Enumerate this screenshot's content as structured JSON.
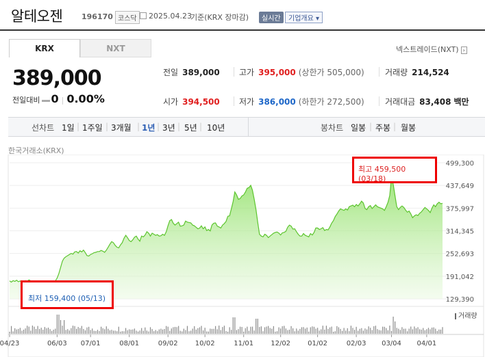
{
  "header": {
    "name": "알테오젠",
    "code": "196170",
    "market": "코스닥",
    "date": "2025.04.23",
    "basis": "기준(KRX 장마감)",
    "realtime_button": "실시간",
    "company_button": "기업개요 ▾"
  },
  "tabs": [
    {
      "label": "KRX",
      "active": true
    },
    {
      "label": "NXT",
      "active": false
    }
  ],
  "nxt_link": {
    "label": "넥스트레이드(NXT)",
    "arrow": "›"
  },
  "price": {
    "current": "389,000",
    "change_label": "전일대비",
    "change_value": "0",
    "change_rate": "0.00%"
  },
  "stats": {
    "prev_close": {
      "label": "전일",
      "value": "389,000"
    },
    "high": {
      "label": "고가",
      "value": "395,000",
      "sub": "(상한가 505,000)"
    },
    "volume": {
      "label": "거래량",
      "value": "214,524"
    },
    "open": {
      "label": "시가",
      "value": "394,500"
    },
    "low": {
      "label": "저가",
      "value": "386,000",
      "sub": "(하한가 272,500)"
    },
    "trade_amount": {
      "label": "거래대금",
      "value": "83,408",
      "unit": "백만"
    }
  },
  "periods": {
    "line_label": "선차트",
    "line_items": [
      "1일",
      "1주일",
      "3개월",
      "1년",
      "3년",
      "5년",
      "10년"
    ],
    "active": "1년",
    "candle_label": "봉차트",
    "candle_items": [
      "일봉",
      "주봉",
      "월봉"
    ]
  },
  "chart_source": "한국거래소(KRX)",
  "chart_data": {
    "type": "area",
    "title": "",
    "y_ticks": [
      499300,
      437649,
      375997,
      314345,
      252693,
      191042,
      129390
    ],
    "y_tick_labels": [
      "499,300",
      "437,649",
      "375,997",
      "314,345",
      "252,693",
      "191,042",
      "129,390"
    ],
    "ylim": [
      129390,
      499300
    ],
    "x_tick_labels": [
      "04/23",
      "06/03",
      "07/01",
      "08/01",
      "09/02",
      "10/02",
      "11/01",
      "12/02",
      "01/02",
      "02/03",
      "03/04",
      "04/01"
    ],
    "x_tick_index": [
      0,
      27,
      46,
      68,
      90,
      111,
      133,
      154,
      175,
      197,
      217,
      237
    ],
    "series": [
      {
        "values": [
          178000,
          175000,
          179000,
          177000,
          180000,
          176000,
          178000,
          172000,
          175000,
          179000,
          177000,
          181000,
          178000,
          176000,
          175000,
          172000,
          170000,
          165000,
          162000,
          159400,
          168000,
          172000,
          174000,
          171000,
          176000,
          175000,
          178000,
          186000,
          198000,
          215000,
          232000,
          240000,
          244000,
          247000,
          250000,
          253000,
          251000,
          257000,
          258000,
          254000,
          260000,
          257000,
          262000,
          255000,
          247000,
          246000,
          250000,
          252000,
          255000,
          256000,
          258000,
          258000,
          261000,
          259000,
          256000,
          262000,
          270000,
          278000,
          285000,
          282000,
          275000,
          270000,
          268000,
          276000,
          282000,
          294000,
          302000,
          296000,
          288000,
          285000,
          290000,
          297000,
          300000,
          292000,
          286000,
          300000,
          298000,
          303000,
          312000,
          308000,
          300000,
          308000,
          305000,
          302000,
          304000,
          300000,
          301000,
          305000,
          302000,
          312000,
          328000,
          342000,
          345000,
          335000,
          330000,
          334000,
          338000,
          327000,
          328000,
          330000,
          341000,
          338000,
          337000,
          336000,
          330000,
          328000,
          324000,
          320000,
          322000,
          328000,
          320000,
          325000,
          315000,
          318000,
          314000,
          330000,
          335000,
          336000,
          327000,
          325000,
          322000,
          330000,
          334000,
          340000,
          354000,
          355000,
          374000,
          394000,
          420000,
          412000,
          400000,
          402000,
          409000,
          412000,
          420000,
          430000,
          432000,
          438000,
          425000,
          400000,
          372000,
          338000,
          305000,
          300000,
          298000,
          305000,
          302000,
          296000,
          300000,
          304000,
          308000,
          310000,
          311000,
          308000,
          303000,
          309000,
          310000,
          313000,
          324000,
          330000,
          327000,
          319000,
          320000,
          312000,
          305000,
          300000,
          300000,
          307000,
          302000,
          300000,
          298000,
          307000,
          303000,
          310000,
          322000,
          322000,
          318000,
          320000,
          323000,
          315000,
          318000,
          317000,
          325000,
          335000,
          342000,
          353000,
          360000,
          368000,
          374000,
          372000,
          370000,
          374000,
          371000,
          380000,
          382000,
          384000,
          380000,
          386000,
          382000,
          388000,
          395000,
          390000,
          375000,
          372000,
          380000,
          383000,
          375000,
          380000,
          385000,
          380000,
          378000,
          376000,
          374000,
          370000,
          380000,
          392000,
          410000,
          459500,
          440000,
          410000,
          380000,
          372000,
          378000,
          382000,
          378000,
          371000,
          365000,
          368000,
          360000,
          350000,
          355000,
          358000,
          356000,
          362000,
          366000,
          372000,
          378000,
          374000,
          370000,
          364000,
          376000,
          385000,
          380000,
          388000,
          392000,
          388000,
          389000
        ]
      }
    ],
    "annotations": [
      {
        "label": "최고 459,500 (03/18)",
        "type": "high"
      },
      {
        "label": "최저 159,400 (05/13)",
        "type": "low"
      }
    ],
    "volume_label": "거래량"
  }
}
